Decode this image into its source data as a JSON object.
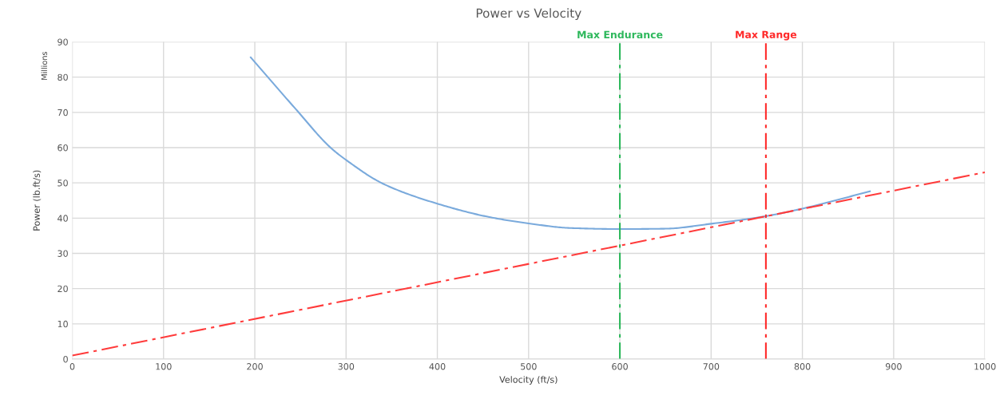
{
  "chart_data": {
    "type": "line",
    "title": "Power vs Velocity",
    "xlabel": "Velocity (ft/s)",
    "ylabel": "Power (lb.ft/s)",
    "annotations": [
      "Millions"
    ],
    "series": [
      {
        "color": "#7aaadc",
        "line_style": "solid",
        "x": [
          195.5,
          245,
          283,
          300,
          341,
          400,
          457,
          500,
          545,
          600,
          650,
          700,
          759,
          800,
          874
        ],
        "values": [
          85.6,
          70.9,
          60,
          56.5,
          49.7,
          44.1,
          40.3,
          38.5,
          37.2,
          36.9,
          37,
          38.4,
          40.5,
          42.7,
          47.6
        ]
      },
      {
        "color": "#ff3b3b",
        "line_style": "dashdot",
        "x": [
          0,
          1000
        ],
        "values": [
          1,
          53
        ]
      }
    ],
    "ref_lines": [
      {
        "axis": "x",
        "value": 600,
        "label": "Max Endurance",
        "color": "#2eb85c",
        "line_style": "dashdot"
      },
      {
        "axis": "x",
        "value": 760,
        "label": "Max Range",
        "color": "#ff2a2a",
        "line_style": "dashdot"
      }
    ],
    "xlim": [
      0,
      1000
    ],
    "xticks": [
      0,
      100,
      200,
      300,
      400,
      500,
      600,
      700,
      800,
      900,
      1000
    ],
    "ylim": [
      0,
      90
    ],
    "yticks": [
      0,
      10,
      20,
      30,
      40,
      50,
      60,
      70,
      80,
      90
    ],
    "grid": true,
    "legend": false
  }
}
